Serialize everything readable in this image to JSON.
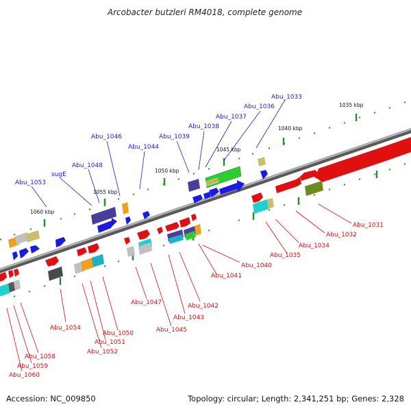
{
  "title": "Arcobacter butzleri RM4018, complete genome",
  "footer": {
    "accession": "Accession: NC_009850",
    "info": "Topology: circular; Length: 2,341,251 bp; Genes: 2,328"
  },
  "kbp_labels": [
    "1035 kbp",
    "1040 kbp",
    "1045 kbp",
    "1050 kbp",
    "1055 kbp",
    "1060 kbp"
  ],
  "upper_labels": [
    "Abu_1033",
    "Abu_1036",
    "Abu_1037",
    "Abu_1038",
    "Abu_1039",
    "Abu_1044",
    "Abu_1046",
    "Abu_1048",
    "sugE",
    "Abu_1053"
  ],
  "lower_labels": [
    "Abu_1031",
    "Abu_1032",
    "Abu_1034",
    "Abu_1035",
    "Abu_1040",
    "Abu_1041",
    "Abu_1042",
    "Abu_1043",
    "Abu_1045",
    "Abu_1047",
    "Abu_1050",
    "Abu_1051",
    "Abu_1052",
    "Abu_1054",
    "Abu_1058",
    "Abu_1059",
    "Abu_1060"
  ],
  "colors": {
    "upper_label": "#1a1ad0",
    "lower_label": "#d01010",
    "backbone": "#8c8c8c",
    "tick": "#2e8b2e",
    "forward_gene": "#1a1ae0",
    "reverse_gene": "#e01010"
  }
}
